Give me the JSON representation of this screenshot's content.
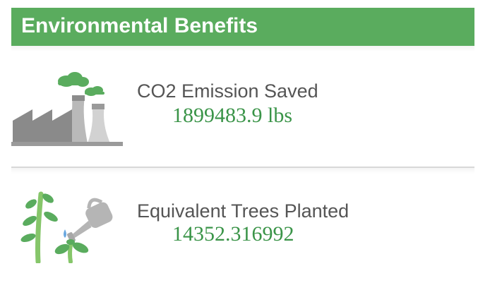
{
  "panel": {
    "title": "Environmental Benefits",
    "accent_color": "#5aac5e",
    "value_color": "#3a9448"
  },
  "metrics": [
    {
      "label": "CO2 Emission Saved",
      "value": "1899483.9 lbs",
      "icon": "factory-icon"
    },
    {
      "label": "Equivalent Trees Planted",
      "value": "14352.316992",
      "icon": "tree-watering-icon"
    }
  ]
}
